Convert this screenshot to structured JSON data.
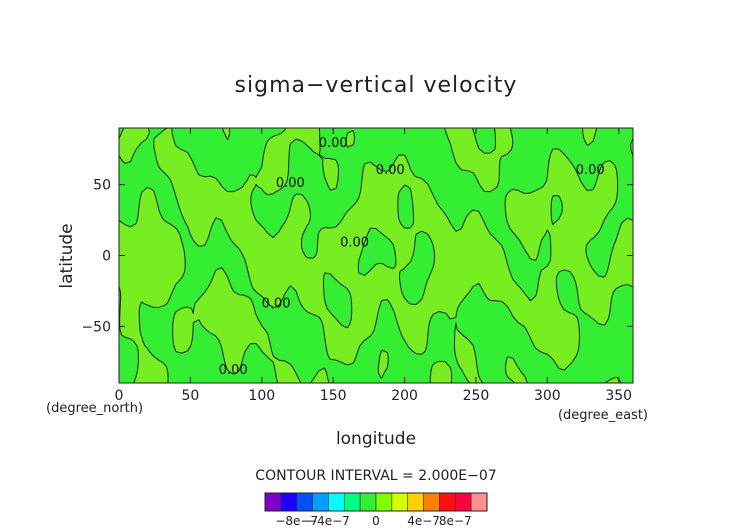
{
  "chart_data": {
    "type": "heatmap",
    "title": "sigma−vertical velocity",
    "xlabel": "longitude",
    "ylabel": "latitude",
    "x_unit": "(degree_east)",
    "y_unit": "(degree_north)",
    "xlim": [
      0,
      360
    ],
    "ylim": [
      -90,
      90
    ],
    "x_ticks": [
      0,
      50,
      100,
      150,
      200,
      250,
      300,
      350
    ],
    "y_ticks": [
      -50,
      0,
      50
    ],
    "x_tick_labels": [
      "0",
      "50",
      "100",
      "150",
      "200",
      "250",
      "300",
      "350"
    ],
    "y_tick_labels": [
      "−50",
      "0",
      "50"
    ],
    "contour_interval_text": "CONTOUR INTERVAL = 2.000E−07",
    "contour_labels": [
      {
        "x": 150,
        "y": 80,
        "text": "0.00"
      },
      {
        "x": 190,
        "y": 61,
        "text": "0.00"
      },
      {
        "x": 330,
        "y": 61,
        "text": "0.00"
      },
      {
        "x": 120,
        "y": 52,
        "text": "0.00"
      },
      {
        "x": 165,
        "y": 10,
        "text": "0.00"
      },
      {
        "x": 110,
        "y": -33,
        "text": "0.00"
      },
      {
        "x": 80,
        "y": -80,
        "text": "0.00"
      }
    ],
    "field_colors": {
      "base": "#33ee33",
      "positive": "#77ee22"
    },
    "colorbar": {
      "colors": [
        "#7f00c8",
        "#1e00ff",
        "#0050ff",
        "#00a0ff",
        "#00ffff",
        "#00ff80",
        "#33ee33",
        "#80ff00",
        "#d0ff00",
        "#ffd000",
        "#ff8000",
        "#ff1010",
        "#ff0040",
        "#ff9090"
      ],
      "tick_labels": [
        "−8e−7",
        "−4e−7",
        "0",
        "4e−7",
        "8e−7"
      ]
    }
  }
}
